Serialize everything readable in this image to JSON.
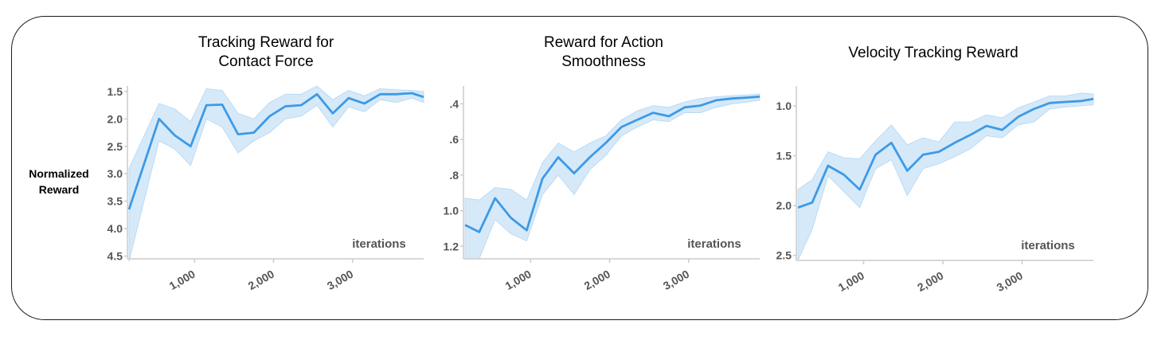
{
  "ylabel_lines": [
    "Normalized",
    "Reward"
  ],
  "colors": {
    "line": "#3d9ae6",
    "band": "#cfe5f8",
    "axis": "#cccccc",
    "frame": "#1a1a1a"
  },
  "chart_data": [
    {
      "type": "line",
      "title_lines": [
        "Tracking Reward for",
        "Contact Force"
      ],
      "xlabel": "iterations",
      "xticks": [
        1000,
        2000,
        3000
      ],
      "xtick_labels": [
        "1,000",
        "2,000",
        "3,000"
      ],
      "xlim": [
        150,
        3900
      ],
      "ylim": [
        4.55,
        1.4
      ],
      "yticks": [
        1.5,
        2.0,
        2.5,
        3.0,
        3.5,
        4.0,
        4.5
      ],
      "ytick_labels": [
        "1.5",
        "2.0",
        "2.5",
        "3.0",
        "3.5",
        "4.0",
        "4.5"
      ],
      "x": [
        170,
        550,
        750,
        950,
        1150,
        1350,
        1550,
        1750,
        1950,
        2150,
        2350,
        2550,
        2750,
        2950,
        3150,
        3350,
        3550,
        3750,
        3900
      ],
      "y": [
        3.65,
        2.0,
        2.3,
        2.5,
        1.75,
        1.74,
        2.28,
        2.25,
        1.95,
        1.77,
        1.75,
        1.55,
        1.9,
        1.62,
        1.72,
        1.55,
        1.55,
        1.53,
        1.6
      ],
      "y_upper": [
        2.9,
        1.72,
        1.82,
        2.05,
        1.45,
        1.48,
        1.9,
        2.0,
        1.7,
        1.55,
        1.55,
        1.4,
        1.65,
        1.48,
        1.58,
        1.45,
        1.47,
        1.48,
        1.5
      ],
      "y_lower": [
        4.6,
        2.4,
        2.55,
        2.85,
        2.0,
        2.15,
        2.62,
        2.4,
        2.25,
        2.0,
        1.95,
        1.75,
        2.15,
        1.78,
        1.87,
        1.65,
        1.7,
        1.62,
        1.7
      ]
    },
    {
      "type": "line",
      "title_lines": [
        "Reward for Action",
        "Smoothness"
      ],
      "xlabel": "iterations",
      "xticks": [
        1000,
        2000,
        3000
      ],
      "xtick_labels": [
        "1,000",
        "2,000",
        "3,000"
      ],
      "xlim": [
        150,
        3900
      ],
      "ylim": [
        1.27,
        0.3
      ],
      "yticks": [
        0.4,
        0.6,
        0.8,
        1.0,
        1.2
      ],
      "ytick_labels": [
        ".4",
        ".6",
        ".8",
        "1.0",
        "1.2"
      ],
      "x": [
        170,
        350,
        550,
        750,
        950,
        1150,
        1350,
        1550,
        1750,
        1950,
        2150,
        2350,
        2550,
        2750,
        2950,
        3150,
        3350,
        3550,
        3750,
        3900
      ],
      "y": [
        1.08,
        1.12,
        0.93,
        1.04,
        1.11,
        0.82,
        0.7,
        0.79,
        0.7,
        0.62,
        0.53,
        0.49,
        0.45,
        0.47,
        0.42,
        0.41,
        0.38,
        0.37,
        0.365,
        0.36
      ],
      "y_upper": [
        0.93,
        0.94,
        0.87,
        0.88,
        0.94,
        0.73,
        0.62,
        0.67,
        0.62,
        0.58,
        0.49,
        0.44,
        0.41,
        0.42,
        0.39,
        0.37,
        0.36,
        0.355,
        0.35,
        0.345
      ],
      "y_lower": [
        1.27,
        1.27,
        1.05,
        1.13,
        1.17,
        0.91,
        0.8,
        0.91,
        0.77,
        0.69,
        0.58,
        0.53,
        0.49,
        0.5,
        0.45,
        0.45,
        0.42,
        0.4,
        0.39,
        0.38
      ]
    },
    {
      "type": "line",
      "title_lines": [
        "Velocity Tracking Reward"
      ],
      "xlabel": "iterations",
      "xticks": [
        1000,
        2000,
        3000
      ],
      "xtick_labels": [
        "1,000",
        "2,000",
        "3,000"
      ],
      "xlim": [
        150,
        3900
      ],
      "ylim": [
        2.55,
        0.8
      ],
      "yticks": [
        1.0,
        1.5,
        2.0,
        2.5
      ],
      "ytick_labels": [
        "1.0",
        "1.5",
        "2.0",
        "2.5"
      ],
      "x": [
        170,
        350,
        550,
        750,
        950,
        1150,
        1350,
        1550,
        1750,
        1950,
        2150,
        2350,
        2550,
        2750,
        2950,
        3150,
        3350,
        3550,
        3750,
        3900
      ],
      "y": [
        2.02,
        1.97,
        1.6,
        1.69,
        1.84,
        1.49,
        1.37,
        1.65,
        1.49,
        1.46,
        1.37,
        1.29,
        1.2,
        1.24,
        1.11,
        1.03,
        0.97,
        0.96,
        0.95,
        0.93
      ],
      "y_upper": [
        1.84,
        1.74,
        1.46,
        1.52,
        1.53,
        1.35,
        1.19,
        1.39,
        1.32,
        1.36,
        1.16,
        1.16,
        1.09,
        1.12,
        1.02,
        0.96,
        0.9,
        0.9,
        0.87,
        0.88
      ],
      "y_lower": [
        2.55,
        2.24,
        1.7,
        1.86,
        2.02,
        1.63,
        1.54,
        1.9,
        1.63,
        1.58,
        1.51,
        1.43,
        1.3,
        1.32,
        1.19,
        1.16,
        1.03,
        1.01,
        1.0,
        0.99
      ]
    }
  ]
}
